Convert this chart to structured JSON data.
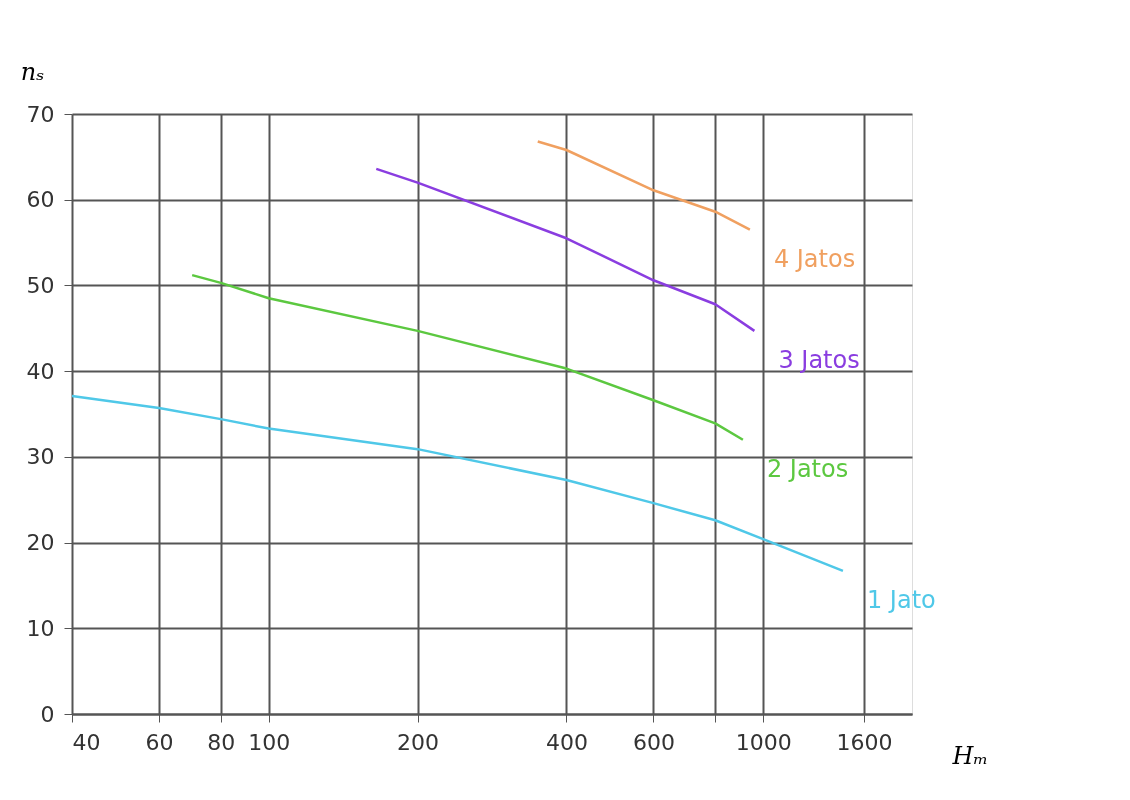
{
  "chart_data": {
    "type": "line",
    "xlabel": "Hₘ",
    "ylabel": "nₛ",
    "log": "x",
    "grid": true,
    "legend": false,
    "marker": "none",
    "line_style": "solid",
    "xlim": [
      40,
      2000
    ],
    "ylim": [
      0,
      70
    ],
    "xticks": [
      40,
      60,
      80,
      100,
      200,
      400,
      600,
      {
        "value": 800,
        "label": null
      },
      1000,
      1600
    ],
    "yticks": [
      0,
      10,
      20,
      30,
      40,
      50,
      60,
      70
    ],
    "series": [
      {
        "name": "4 Jatos",
        "color": "#f0a060",
        "x": [
          350,
          400,
          600,
          800,
          940
        ],
        "values": [
          66.8,
          65.8,
          61.1,
          58.6,
          56.5
        ]
      },
      {
        "name": "3 Jatos",
        "color": "#8a3de0",
        "x": [
          165,
          200,
          400,
          600,
          800,
          960
        ],
        "values": [
          63.6,
          62.0,
          55.5,
          50.6,
          47.8,
          44.7
        ]
      },
      {
        "name": "2 Jatos",
        "color": "#5cc840",
        "x": [
          70,
          80,
          100,
          200,
          400,
          600,
          800,
          910
        ],
        "values": [
          51.2,
          50.3,
          48.5,
          44.7,
          40.3,
          36.6,
          33.9,
          32.0
        ]
      },
      {
        "name": "1 Jato",
        "color": "#4fc8e8",
        "x": [
          40,
          60,
          80,
          100,
          200,
          400,
          600,
          800,
          1000,
          1450
        ],
        "values": [
          37.1,
          35.7,
          34.4,
          33.3,
          30.9,
          27.3,
          24.6,
          22.6,
          20.4,
          16.7
        ]
      }
    ]
  }
}
